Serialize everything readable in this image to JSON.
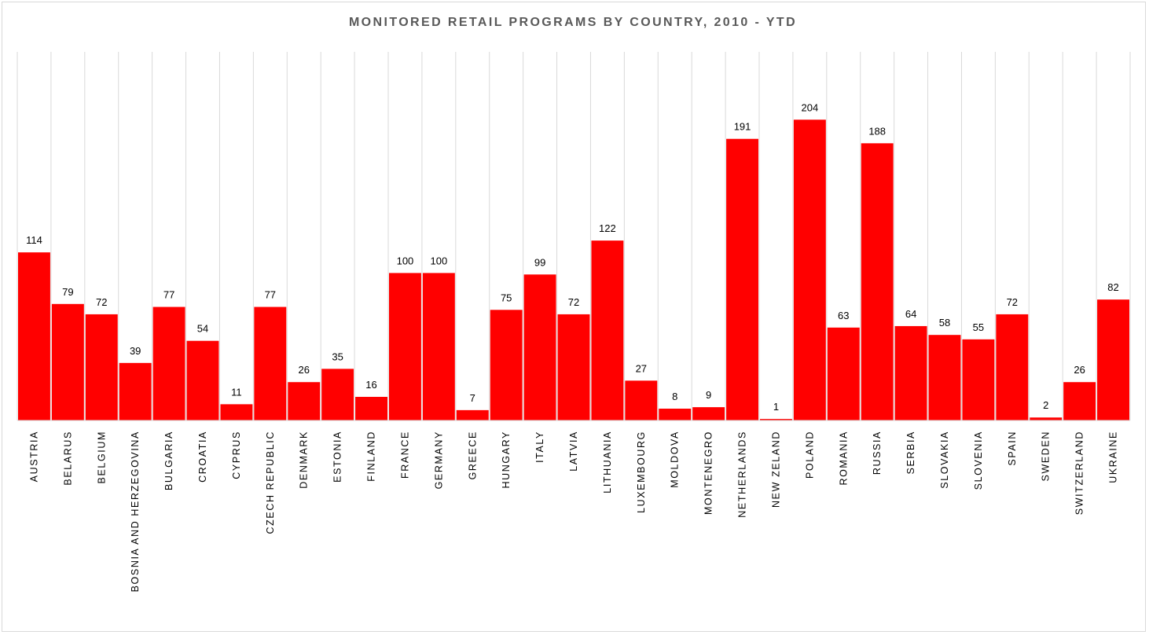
{
  "chart_data": {
    "type": "bar",
    "title": "MONITORED RETAIL PROGRAMS BY COUNTRY, 2010 - YTD",
    "xlabel": "",
    "ylabel": "",
    "ylim": [
      0,
      250
    ],
    "grid": "vertical",
    "legend": "none",
    "bar_color": "#ff0000",
    "gridline_color": "#d9d9d9",
    "categories": [
      "AUSTRIA",
      "BELARUS",
      "BELGIUM",
      "BOSNIA AND HERZEGOVINA",
      "BULGARIA",
      "CROATIA",
      "CYPRUS",
      "CZECH REPUBLIC",
      "DENMARK",
      "ESTONIA",
      "FINLAND",
      "FRANCE",
      "GERMANY",
      "GREECE",
      "HUNGARY",
      "ITALY",
      "LATVIA",
      "LITHUANIA",
      "LUXEMBOURG",
      "MOLDOVA",
      "MONTENEGRO",
      "NETHERLANDS",
      "NEW ZELAND",
      "POLAND",
      "ROMANIA",
      "RUSSIA",
      "SERBIA",
      "SLOVAKIA",
      "SLOVENIA",
      "SPAIN",
      "SWEDEN",
      "SWITZERLAND",
      "UKRAINE"
    ],
    "values": [
      114,
      79,
      72,
      39,
      77,
      54,
      11,
      77,
      26,
      35,
      16,
      100,
      100,
      7,
      75,
      99,
      72,
      122,
      27,
      8,
      9,
      191,
      1,
      204,
      63,
      188,
      64,
      58,
      55,
      72,
      2,
      26,
      82
    ]
  }
}
